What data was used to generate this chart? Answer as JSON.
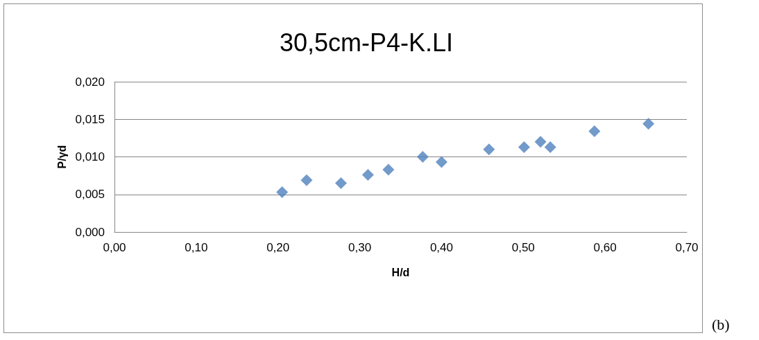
{
  "chart_data": {
    "type": "scatter",
    "title": "30,5cm-P4-K.LI",
    "xlabel": "H/d",
    "ylabel": "P/γd",
    "x": [
      0.205,
      0.235,
      0.277,
      0.31,
      0.335,
      0.377,
      0.4,
      0.458,
      0.501,
      0.521,
      0.533,
      0.587,
      0.653
    ],
    "values": [
      0.0053,
      0.0069,
      0.0065,
      0.0076,
      0.0083,
      0.01,
      0.0093,
      0.011,
      0.0113,
      0.012,
      0.0113,
      0.0134,
      0.0144
    ],
    "color": "#4f81bd",
    "marker": "diamond",
    "xlim": [
      0,
      0.7
    ],
    "xticks": [
      {
        "value": 0,
        "label": "0,00"
      },
      {
        "value": 0.1,
        "label": "0,10"
      },
      {
        "value": 0.2,
        "label": "0,20"
      },
      {
        "value": 0.3,
        "label": "0,30"
      },
      {
        "value": 0.4,
        "label": "0,40"
      },
      {
        "value": 0.5,
        "label": "0,50"
      },
      {
        "value": 0.6,
        "label": "0,60"
      },
      {
        "value": 0.7,
        "label": "0,70"
      }
    ],
    "ylim": [
      0,
      0.02
    ],
    "yticks": [
      {
        "value": 0,
        "label": "0,000"
      },
      {
        "value": 0.005,
        "label": "0,005"
      },
      {
        "value": 0.01,
        "label": "0,010"
      },
      {
        "value": 0.015,
        "label": "0,015"
      },
      {
        "value": 0.02,
        "label": "0,020"
      }
    ],
    "grid": "y",
    "annotations": [
      "(b)"
    ]
  }
}
